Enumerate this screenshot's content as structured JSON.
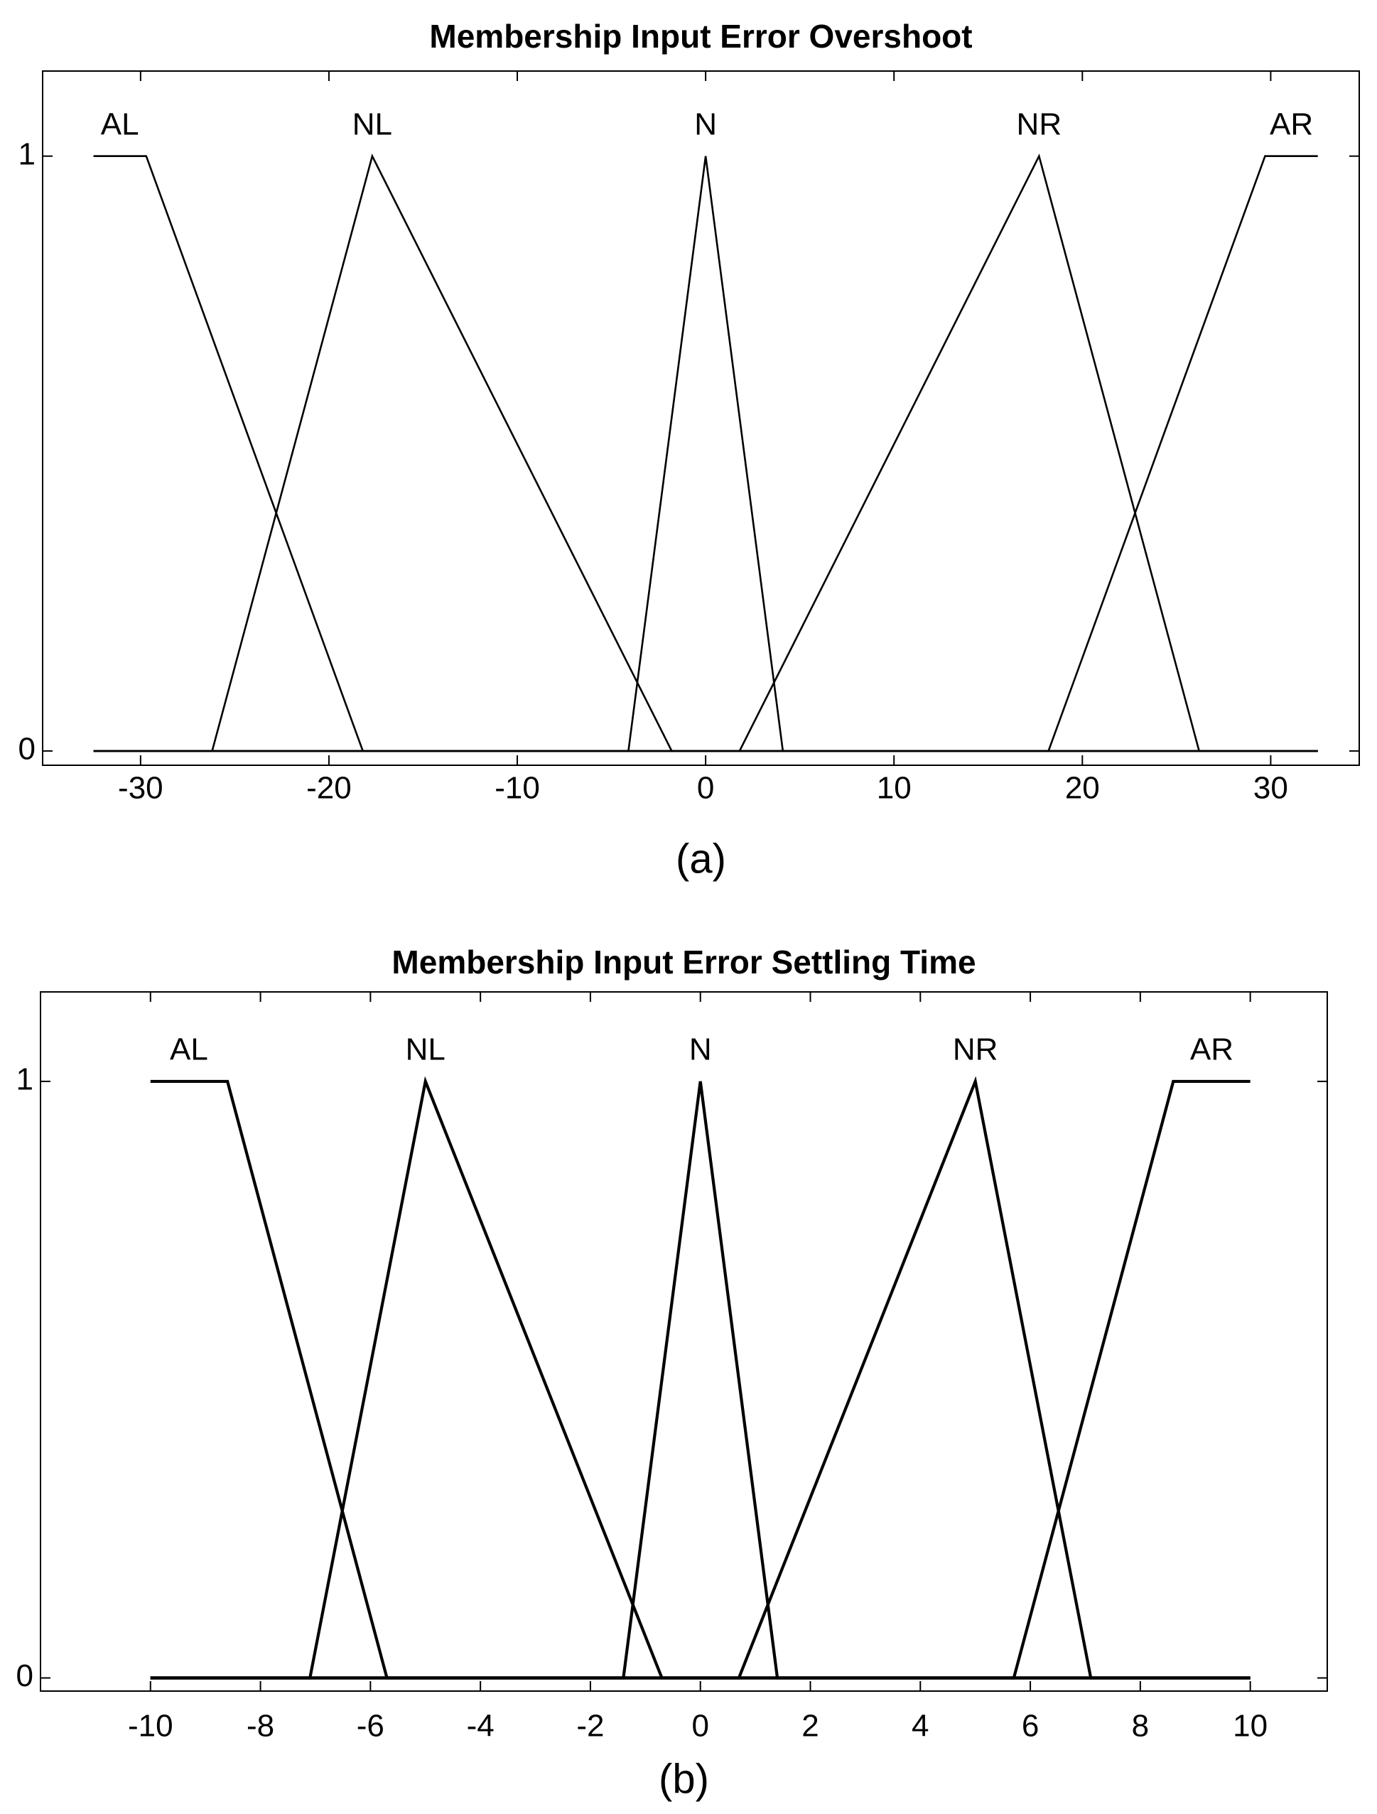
{
  "chart_data": [
    {
      "type": "line",
      "title": "Membership Input Error Overshoot",
      "caption": "(a)",
      "xlim": [
        -35.2,
        34.7
      ],
      "ylim": [
        -0.024,
        1.143
      ],
      "xticks": [
        -30,
        -20,
        -10,
        0,
        10,
        20,
        30
      ],
      "yticks": [
        0,
        1
      ],
      "series": [
        {
          "name": "AL",
          "color": "#000000",
          "x": [
            -32.5,
            -29.7,
            -18.2,
            32.5
          ],
          "values": [
            1,
            1,
            0,
            0
          ]
        },
        {
          "name": "NL",
          "color": "#000000",
          "x": [
            -32.5,
            -26.2,
            -17.7,
            -1.8,
            32.5
          ],
          "values": [
            0,
            0,
            1,
            0,
            0
          ]
        },
        {
          "name": "N",
          "color": "#000000",
          "x": [
            -32.5,
            -4.1,
            0,
            4.1,
            32.5
          ],
          "values": [
            0,
            0,
            1,
            0,
            0
          ]
        },
        {
          "name": "NR",
          "color": "#000000",
          "x": [
            -32.5,
            1.8,
            17.7,
            26.2,
            32.5
          ],
          "values": [
            0,
            0,
            1,
            0,
            0
          ]
        },
        {
          "name": "AR",
          "color": "#000000",
          "x": [
            -32.5,
            18.2,
            29.7,
            32.5
          ],
          "values": [
            0,
            0,
            1,
            1
          ]
        }
      ]
    },
    {
      "type": "line",
      "title": "Membership Input Error Settling Time",
      "caption": "(b)",
      "xlim": [
        -12,
        11.4
      ],
      "ylim": [
        -0.022,
        1.15
      ],
      "xticks": [
        -10,
        -8,
        -6,
        -4,
        -2,
        0,
        2,
        4,
        6,
        8,
        10
      ],
      "yticks": [
        0,
        1
      ],
      "series": [
        {
          "name": "AL",
          "color": "#000000",
          "x": [
            -10,
            -8.6,
            -5.7,
            10
          ],
          "values": [
            1,
            1,
            0,
            0
          ]
        },
        {
          "name": "NL",
          "color": "#000000",
          "x": [
            -10,
            -7.1,
            -5,
            -0.7,
            10
          ],
          "values": [
            0,
            0,
            1,
            0,
            0
          ]
        },
        {
          "name": "N",
          "color": "#000000",
          "x": [
            -10,
            -1.4,
            0,
            1.4,
            10
          ],
          "values": [
            0,
            0,
            1,
            0,
            0
          ]
        },
        {
          "name": "NR",
          "color": "#000000",
          "x": [
            -10,
            0.7,
            5,
            7.1,
            10
          ],
          "values": [
            0,
            0,
            1,
            0,
            0
          ]
        },
        {
          "name": "AR",
          "color": "#000000",
          "x": [
            -10,
            5.7,
            8.6,
            10,
            10
          ],
          "values": [
            0,
            0,
            1,
            1,
            1
          ]
        }
      ]
    }
  ]
}
